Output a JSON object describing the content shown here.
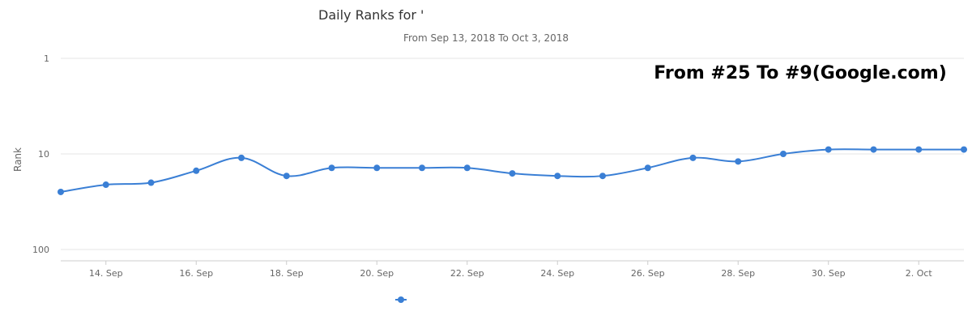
{
  "chart_data": {
    "type": "line",
    "title": "Daily Ranks for '",
    "subtitle": "From Sep 13, 2018 To Oct 3, 2018",
    "ylabel": "Rank",
    "y_scale": "log",
    "y_reversed": true,
    "ylim": [
      1,
      100
    ],
    "y_ticks": [
      "1",
      "10",
      "100"
    ],
    "x_tick_labels": [
      "14. Sep",
      "16. Sep",
      "18. Sep",
      "20. Sep",
      "22. Sep",
      "24. Sep",
      "26. Sep",
      "28. Sep",
      "30. Sep",
      "2. Oct"
    ],
    "annotation": "From #25 To #9(Google.com)",
    "grid": true,
    "legend_position": "bottom",
    "series": [
      {
        "color": "#3a7fd5",
        "x": [
          "2018-09-13",
          "2018-09-14",
          "2018-09-15",
          "2018-09-16",
          "2018-09-17",
          "2018-09-18",
          "2018-09-19",
          "2018-09-20",
          "2018-09-21",
          "2018-09-22",
          "2018-09-23",
          "2018-09-24",
          "2018-09-25",
          "2018-09-26",
          "2018-09-27",
          "2018-09-28",
          "2018-09-29",
          "2018-09-30",
          "2018-10-01",
          "2018-10-02",
          "2018-10-03"
        ],
        "values": [
          25,
          21,
          20,
          15,
          11,
          17,
          14,
          14,
          14,
          14,
          16,
          17,
          17,
          14,
          11,
          12,
          10,
          9,
          9,
          9,
          9
        ]
      }
    ]
  }
}
